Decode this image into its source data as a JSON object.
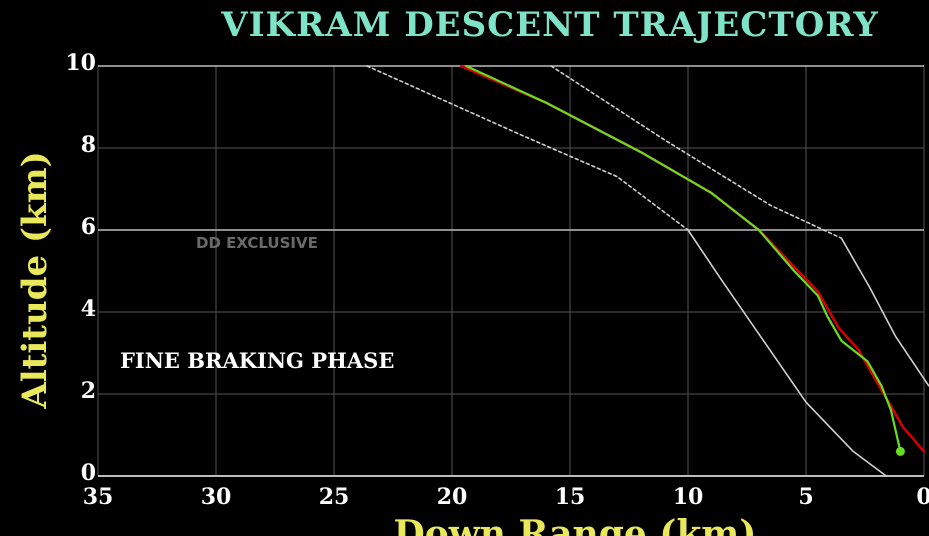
{
  "chart_data": {
    "type": "line",
    "title": "VIKRAM DESCENT TRAJECTORY",
    "xlabel": "Down Range (km)",
    "ylabel": "Altitude (km)",
    "watermark": "DD EXCLUSIVE",
    "annotation": "FINE BRAKING PHASE",
    "xlim": [
      35,
      0
    ],
    "ylim": [
      0,
      10
    ],
    "x_ticks": [
      "35",
      "30",
      "25",
      "20",
      "15",
      "10",
      "5",
      "0"
    ],
    "y_ticks": [
      "10",
      "8",
      "6",
      "4",
      "2",
      "0"
    ],
    "x_tick_values": [
      35,
      30,
      25,
      20,
      15,
      10,
      5,
      0
    ],
    "y_tick_values": [
      10,
      8,
      6,
      4,
      2,
      0
    ],
    "x_grid_values": [
      35,
      30,
      25,
      20,
      15,
      10,
      5,
      0
    ],
    "y_grid_values": [
      10,
      8,
      6,
      4,
      2
    ],
    "grid": true,
    "colors": {
      "title": "#7fe3c8",
      "axis_label": "#e8e85a",
      "planned": "#d40000",
      "actual": "#66dd22",
      "bound": "#d0d0d0",
      "grid": "#555555",
      "tick_label": "#ffffff",
      "watermark": "#6a6a6a"
    },
    "series": [
      {
        "role": "lower-bound-upper-segment",
        "style": "dotted",
        "x": [
          23.6,
          17,
          13,
          10
        ],
        "y": [
          10,
          8.3,
          7.3,
          6.0
        ]
      },
      {
        "role": "lower-bound-lower-segment",
        "style": "solid",
        "x": [
          10,
          8.6,
          6.8,
          5.0,
          3.0,
          1.6
        ],
        "y": [
          6.0,
          4.8,
          3.3,
          1.8,
          0.6,
          0
        ]
      },
      {
        "role": "upper-bound-upper-segment",
        "style": "dotted",
        "x": [
          15.8,
          11,
          6.5,
          3.5
        ],
        "y": [
          10,
          8.2,
          6.6,
          5.8
        ]
      },
      {
        "role": "upper-bound-lower-segment",
        "style": "solid",
        "x": [
          3.5,
          2.3,
          1.2,
          -0.2
        ],
        "y": [
          5.8,
          4.6,
          3.4,
          2.2
        ]
      },
      {
        "role": "planned",
        "style": "solid",
        "x": [
          19.6,
          16,
          12,
          9,
          7,
          5.5,
          4.5,
          3.6,
          2.8,
          1.8,
          0.9,
          0
        ],
        "y": [
          10,
          9.1,
          7.9,
          6.9,
          6.0,
          5.1,
          4.5,
          3.6,
          3.1,
          2.1,
          1.2,
          0.6
        ]
      },
      {
        "role": "actual",
        "style": "solid",
        "x": [
          19.4,
          16,
          12,
          9,
          7,
          5.5,
          4.5,
          4.1,
          3.5,
          2.4,
          1.8,
          1.4,
          1.2,
          1.0
        ],
        "y": [
          10,
          9.1,
          7.9,
          6.9,
          6.0,
          5.0,
          4.4,
          3.9,
          3.3,
          2.8,
          2.2,
          1.6,
          1.1,
          0.6
        ]
      }
    ]
  }
}
